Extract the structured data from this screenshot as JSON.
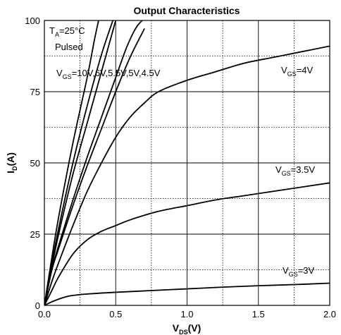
{
  "chart_data": {
    "type": "line",
    "title": "Output Characteristics",
    "xlabel": {
      "main": "V",
      "sub": "DS",
      "tail": "(V)"
    },
    "ylabel": {
      "main": "I",
      "sub": "D",
      "tail": "(A)"
    },
    "xlim": [
      0,
      2.0
    ],
    "ylim": [
      0,
      100
    ],
    "x_ticks": [
      "0.0",
      "0.5",
      "1.0",
      "1.5",
      "2.0"
    ],
    "y_ticks": [
      "0",
      "25",
      "50",
      "75",
      "100"
    ],
    "grid": {
      "major": "solid",
      "minor": "dotted"
    },
    "conditions": {
      "line1": {
        "main": "T",
        "sub": "A",
        "tail": "=25°C"
      },
      "line2": "Pulsed"
    },
    "steep_curves_label": {
      "main": "V",
      "sub": "GS",
      "tail": "=10V,6V,5.5V,5V,4.5V"
    },
    "series": [
      {
        "name": "10V",
        "x": [
          0,
          0.05,
          0.1,
          0.2,
          0.3,
          0.4,
          0.5,
          0.58,
          0.65,
          0.73
        ],
        "y": [
          0,
          12,
          21,
          37,
          52,
          66,
          80,
          91,
          98,
          102
        ]
      },
      {
        "name": "6V",
        "x": [
          0,
          0.05,
          0.1,
          0.2,
          0.3,
          0.4,
          0.5,
          0.6,
          0.7
        ],
        "y": [
          0,
          12,
          20,
          35,
          49,
          62,
          75,
          87,
          97
        ]
      },
      {
        "name": "5.5V",
        "x": [
          0,
          0.05,
          0.1,
          0.2,
          0.3,
          0.4,
          0.5
        ],
        "y": [
          0,
          13,
          25,
          46,
          64,
          82,
          100
        ]
      },
      {
        "name": "5V",
        "x": [
          0,
          0.05,
          0.1,
          0.2,
          0.3,
          0.4,
          0.48
        ],
        "y": [
          0,
          14,
          27,
          50,
          70,
          88,
          100
        ]
      },
      {
        "name": "4.5V",
        "x": [
          0,
          0.05,
          0.1,
          0.2,
          0.3,
          0.35,
          0.38
        ],
        "y": [
          0,
          16,
          31,
          57,
          80,
          93,
          100
        ]
      },
      {
        "name": "4V",
        "label": {
          "main": "V",
          "sub": "GS",
          "tail": "=4V"
        },
        "x": [
          0,
          0.05,
          0.1,
          0.2,
          0.3,
          0.4,
          0.5,
          0.6,
          0.7,
          0.8,
          1.0,
          1.2,
          1.4,
          1.6,
          1.8,
          2.0
        ],
        "y": [
          0,
          8,
          15,
          28,
          40,
          50,
          59,
          66,
          71,
          75,
          79,
          82,
          85,
          87,
          89,
          91
        ]
      },
      {
        "name": "3.5V",
        "label": {
          "main": "V",
          "sub": "GS",
          "tail": "=3.5V"
        },
        "x": [
          0,
          0.05,
          0.1,
          0.2,
          0.3,
          0.4,
          0.5,
          0.6,
          0.8,
          1.0,
          1.2,
          1.4,
          1.6,
          1.8,
          2.0
        ],
        "y": [
          0,
          5,
          10,
          18,
          23,
          26,
          28,
          30,
          33,
          35,
          37,
          38.5,
          40,
          41.5,
          43
        ]
      },
      {
        "name": "3V",
        "label": {
          "main": "V",
          "sub": "GS",
          "tail": "=3V"
        },
        "x": [
          0,
          0.05,
          0.1,
          0.15,
          0.2,
          0.3,
          0.5,
          0.75,
          1.0,
          1.25,
          1.5,
          1.75,
          2.0
        ],
        "y": [
          0,
          1.2,
          2.2,
          3.0,
          3.5,
          4.0,
          4.6,
          5.2,
          5.8,
          6.4,
          6.9,
          7.3,
          7.8
        ]
      }
    ]
  }
}
